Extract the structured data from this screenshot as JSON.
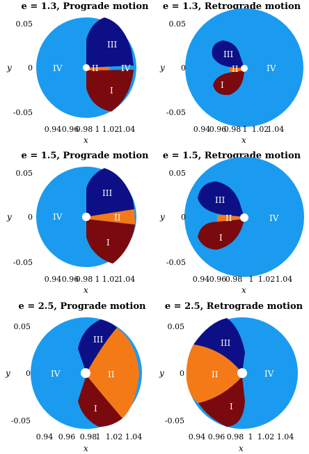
{
  "colors": {
    "I": "#7a0a0d",
    "II": "#f47a18",
    "III": "#0d0f86",
    "IV": "#1a9bf0",
    "marker": "#ffffff"
  },
  "axis_labels": {
    "x": "x",
    "y": "y"
  },
  "panels": [
    {
      "title": "e = 1.3, Prograde motion",
      "yticks": [
        "0.05",
        "0",
        "-0.05"
      ],
      "xticks": [
        "0.94",
        "0.96",
        "0.98",
        "1",
        "1.02",
        "1.04"
      ],
      "regions": [
        "III",
        "II",
        "IV",
        "IV",
        "I"
      ]
    },
    {
      "title": "e = 1.3, Retrograde motion",
      "yticks": [
        "0.05",
        "0",
        "-0.05"
      ],
      "xticks": [
        "0.94",
        "0.96",
        "0.98",
        "1",
        "1.02",
        "1.04"
      ],
      "regions": [
        "III",
        "II",
        "IV",
        "I"
      ]
    },
    {
      "title": "e = 1.5, Prograde motion",
      "yticks": [
        "0.05",
        "0",
        "-0.05"
      ],
      "xticks": [
        "0.94",
        "0.96",
        "0.98",
        "1",
        "1.02",
        "1.04"
      ],
      "regions": [
        "III",
        "IV",
        "II",
        "I"
      ]
    },
    {
      "title": "e = 1.5, Retrograde motion",
      "yticks": [
        "0.05",
        "0",
        "-0.05"
      ],
      "xticks": [
        "0.94",
        "0.96",
        "0.98",
        "1",
        "1.02",
        "1.04"
      ],
      "regions": [
        "III",
        "II",
        "IV",
        "I"
      ]
    },
    {
      "title": "e = 2.5, Prograde motion",
      "yticks": [
        "0.05",
        "0",
        "-0.05"
      ],
      "xticks": [
        "0.94",
        "0.96",
        "0.98",
        "1",
        "1.02",
        "1.04"
      ],
      "regions": [
        "III",
        "IV",
        "II",
        "I"
      ]
    },
    {
      "title": "e = 2.5, Retrograde motion",
      "yticks": [
        "0.05",
        "0",
        "-0.05"
      ],
      "xticks": [
        "0.94",
        "0.96",
        "0.98",
        "1",
        "1.02",
        "1.04"
      ],
      "regions": [
        "III",
        "II",
        "IV",
        "I"
      ]
    }
  ]
}
